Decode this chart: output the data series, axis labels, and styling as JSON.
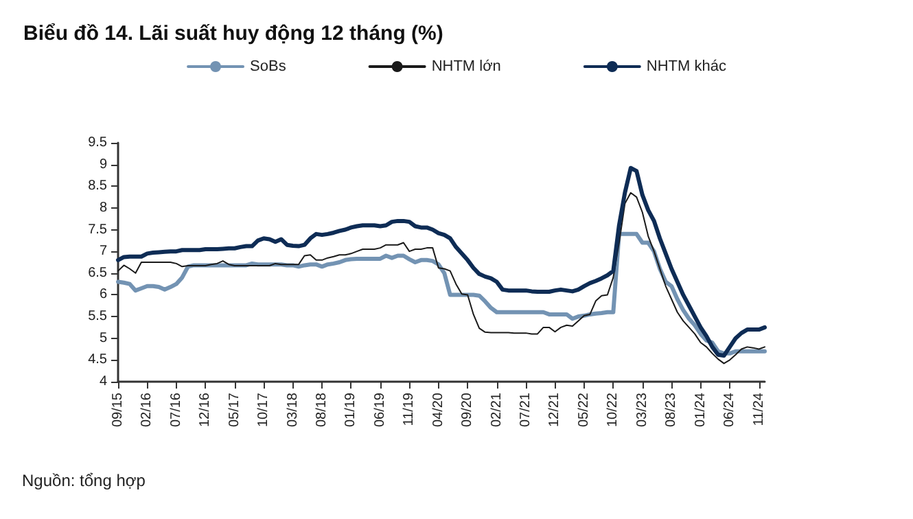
{
  "chart_data": {
    "type": "line",
    "title": "Biểu đồ 14. Lãi suất huy động 12 tháng (%)",
    "categories": [
      "09/15",
      null,
      null,
      null,
      null,
      "02/16",
      null,
      null,
      null,
      null,
      "07/16",
      null,
      null,
      null,
      null,
      "12/16",
      null,
      null,
      null,
      null,
      "05/17",
      null,
      null,
      null,
      null,
      "10/17",
      null,
      null,
      null,
      null,
      "03/18",
      null,
      null,
      null,
      null,
      "08/18",
      null,
      null,
      null,
      null,
      "01/19",
      null,
      null,
      null,
      null,
      "06/19",
      null,
      null,
      null,
      null,
      "11/19",
      null,
      null,
      null,
      null,
      "04/20",
      null,
      null,
      null,
      null,
      "09/20",
      null,
      null,
      null,
      null,
      "02/21",
      null,
      null,
      null,
      null,
      "07/21",
      null,
      null,
      null,
      null,
      "12/21",
      null,
      null,
      null,
      null,
      "05/22",
      null,
      null,
      null,
      null,
      "10/22",
      null,
      null,
      null,
      null,
      "03/23",
      null,
      null,
      null,
      null,
      "08/23",
      null,
      null,
      null,
      null,
      "01/24",
      null,
      null,
      null,
      null,
      "06/24",
      null,
      null,
      null,
      null,
      "11/24",
      null
    ],
    "series": [
      {
        "name": "SoBs",
        "color": "#7393b3",
        "values": [
          6.3,
          6.28,
          6.25,
          6.1,
          6.15,
          6.2,
          6.2,
          6.18,
          6.12,
          6.18,
          6.25,
          6.4,
          6.65,
          6.68,
          6.68,
          6.68,
          6.68,
          6.68,
          6.68,
          6.68,
          6.68,
          6.68,
          6.68,
          6.72,
          6.7,
          6.7,
          6.7,
          6.7,
          6.7,
          6.68,
          6.68,
          6.65,
          6.68,
          6.7,
          6.7,
          6.65,
          6.7,
          6.72,
          6.75,
          6.8,
          6.82,
          6.83,
          6.83,
          6.83,
          6.83,
          6.83,
          6.9,
          6.85,
          6.9,
          6.9,
          6.82,
          6.75,
          6.8,
          6.8,
          6.78,
          6.7,
          6.5,
          6.0,
          6.0,
          6.0,
          6.0,
          6.0,
          5.98,
          5.85,
          5.7,
          5.6,
          5.6,
          5.6,
          5.6,
          5.6,
          5.6,
          5.6,
          5.6,
          5.6,
          5.55,
          5.55,
          5.55,
          5.55,
          5.45,
          5.5,
          5.52,
          5.55,
          5.57,
          5.58,
          5.6,
          5.6,
          7.4,
          7.4,
          7.4,
          7.4,
          7.2,
          7.2,
          7.0,
          6.6,
          6.3,
          6.2,
          5.9,
          5.65,
          5.45,
          5.3,
          5.1,
          4.95,
          4.9,
          4.7,
          4.65,
          4.65,
          4.7,
          4.7,
          4.7,
          4.7,
          4.7,
          4.7
        ]
      },
      {
        "name": "NHTM lớn",
        "color": "#1a1a1a",
        "values": [
          6.55,
          6.68,
          6.6,
          6.5,
          6.75,
          6.75,
          6.75,
          6.75,
          6.75,
          6.75,
          6.72,
          6.65,
          6.67,
          6.67,
          6.67,
          6.67,
          6.7,
          6.72,
          6.78,
          6.7,
          6.67,
          6.67,
          6.67,
          6.67,
          6.67,
          6.67,
          6.67,
          6.72,
          6.7,
          6.7,
          6.7,
          6.7,
          6.9,
          6.92,
          6.8,
          6.8,
          6.85,
          6.88,
          6.92,
          6.92,
          6.95,
          7.0,
          7.05,
          7.05,
          7.05,
          7.08,
          7.15,
          7.15,
          7.15,
          7.2,
          7.0,
          7.05,
          7.05,
          7.08,
          7.08,
          6.62,
          6.6,
          6.55,
          6.25,
          6.02,
          6.0,
          5.55,
          5.23,
          5.14,
          5.13,
          5.13,
          5.13,
          5.13,
          5.12,
          5.12,
          5.12,
          5.1,
          5.1,
          5.25,
          5.25,
          5.15,
          5.25,
          5.3,
          5.28,
          5.4,
          5.52,
          5.55,
          5.86,
          5.98,
          6.0,
          6.4,
          7.2,
          8.1,
          8.35,
          8.25,
          7.9,
          7.35,
          7.0,
          6.6,
          6.2,
          5.9,
          5.6,
          5.4,
          5.25,
          5.1,
          4.9,
          4.8,
          4.65,
          4.52,
          4.42,
          4.5,
          4.62,
          4.75,
          4.8,
          4.78,
          4.75,
          4.8
        ]
      },
      {
        "name": "NHTM khác",
        "color": "#0e2c55",
        "values": [
          6.8,
          6.87,
          6.88,
          6.88,
          6.88,
          6.95,
          6.97,
          6.98,
          6.99,
          7.0,
          7.0,
          7.03,
          7.03,
          7.03,
          7.03,
          7.05,
          7.05,
          7.05,
          7.06,
          7.07,
          7.07,
          7.1,
          7.12,
          7.12,
          7.25,
          7.3,
          7.28,
          7.22,
          7.28,
          7.15,
          7.13,
          7.12,
          7.15,
          7.3,
          7.4,
          7.38,
          7.4,
          7.43,
          7.47,
          7.5,
          7.55,
          7.58,
          7.6,
          7.6,
          7.6,
          7.58,
          7.6,
          7.68,
          7.7,
          7.7,
          7.68,
          7.58,
          7.55,
          7.55,
          7.5,
          7.42,
          7.38,
          7.3,
          7.1,
          6.95,
          6.8,
          6.62,
          6.48,
          6.42,
          6.38,
          6.3,
          6.12,
          6.1,
          6.1,
          6.1,
          6.1,
          6.08,
          6.07,
          6.07,
          6.07,
          6.1,
          6.12,
          6.1,
          6.08,
          6.12,
          6.2,
          6.27,
          6.32,
          6.38,
          6.45,
          6.55,
          7.6,
          8.35,
          8.92,
          8.85,
          8.3,
          7.95,
          7.7,
          7.3,
          6.95,
          6.6,
          6.3,
          6.0,
          5.75,
          5.5,
          5.25,
          5.05,
          4.8,
          4.62,
          4.6,
          4.8,
          5.0,
          5.12,
          5.2,
          5.2,
          5.2,
          5.25
        ]
      }
    ],
    "ylim": [
      4,
      9.5
    ],
    "yticks": [
      4,
      4.5,
      5,
      5.5,
      6,
      6.5,
      7,
      7.5,
      8,
      8.5,
      9,
      9.5
    ],
    "grid": false,
    "legend": "top",
    "marker": "none",
    "line_style": "solid",
    "annotations": [
      "Nguồn: tổng hợp"
    ]
  }
}
